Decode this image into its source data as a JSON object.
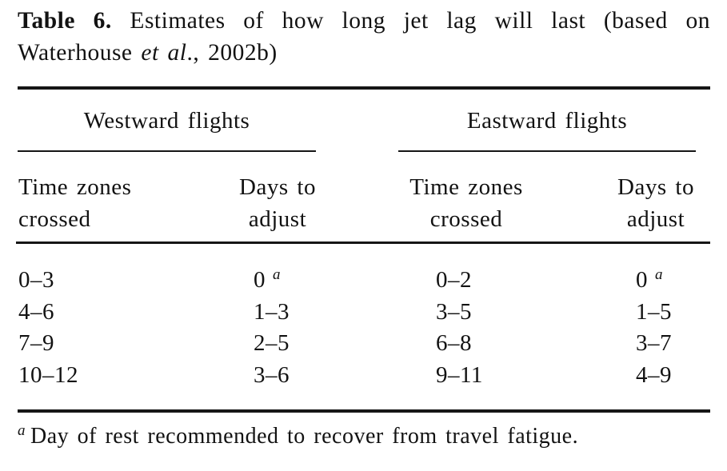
{
  "caption": {
    "label": "Table 6.",
    "line1_rest": "Estimates of how long jet lag will last (based on",
    "line2_pre": "Waterhouse",
    "line2_italic": "et al",
    "line2_post": "., 2002b)"
  },
  "colors": {
    "background": "#ffffff",
    "text": "#121212",
    "rule": "#161616"
  },
  "table": {
    "groups": [
      {
        "label": "Westward flights"
      },
      {
        "label": "Eastward flights"
      }
    ],
    "columns": [
      {
        "line1": "Time zones",
        "line2": "crossed"
      },
      {
        "line1": "Days to",
        "line2": "adjust"
      },
      {
        "line1": "Time zones",
        "line2": "crossed"
      },
      {
        "line1": "Days to",
        "line2": "adjust"
      }
    ],
    "rows": [
      {
        "c0": "0–3",
        "c1": "0",
        "c1sup": "a",
        "c2": "0–2",
        "c3": "0",
        "c3sup": "a"
      },
      {
        "c0": "4–6",
        "c1": "1–3",
        "c1sup": "",
        "c2": "3–5",
        "c3": "1–5",
        "c3sup": ""
      },
      {
        "c0": "7–9",
        "c1": "2–5",
        "c1sup": "",
        "c2": "6–8",
        "c3": "3–7",
        "c3sup": ""
      },
      {
        "c0": "10–12",
        "c1": "3–6",
        "c1sup": "",
        "c2": "9–11",
        "c3": "4–9",
        "c3sup": ""
      }
    ]
  },
  "footnote": {
    "marker": "a",
    "text": "Day of rest recommended to recover from travel fatigue."
  }
}
